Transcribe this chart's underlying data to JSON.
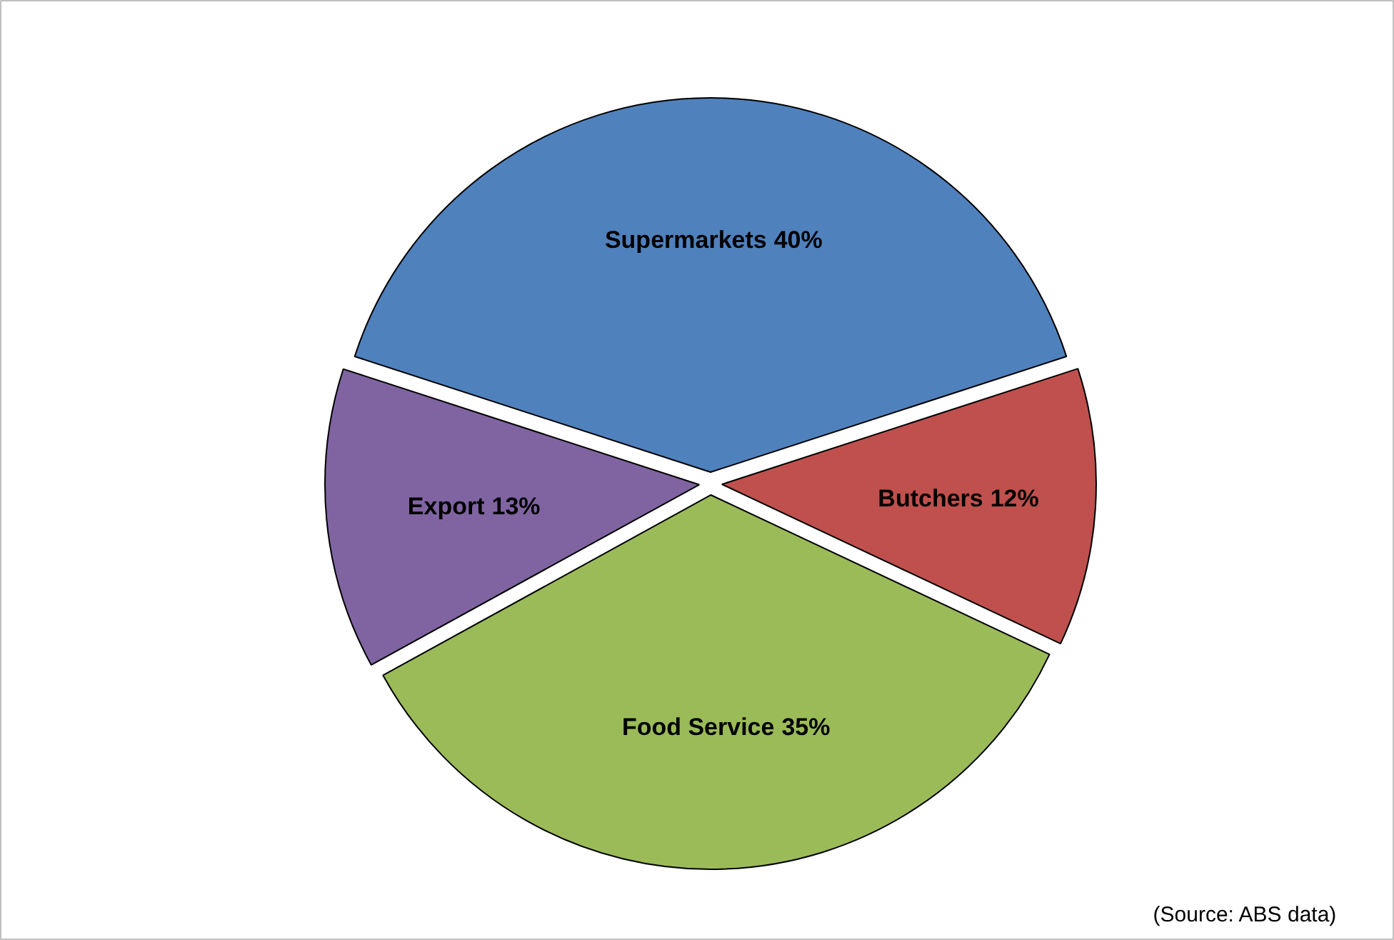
{
  "chart_data": {
    "type": "pie",
    "categories": [
      "Supermarkets",
      "Butchers",
      "Food Service",
      "Export"
    ],
    "values": [
      40,
      12,
      35,
      13
    ],
    "colors": [
      "#4f81bd",
      "#c0504d",
      "#9bbb59",
      "#8064a2"
    ],
    "value_labels": [
      "40%",
      "12%",
      "35%",
      "13%"
    ],
    "annotations": [
      "(Source: ABS data)"
    ]
  }
}
